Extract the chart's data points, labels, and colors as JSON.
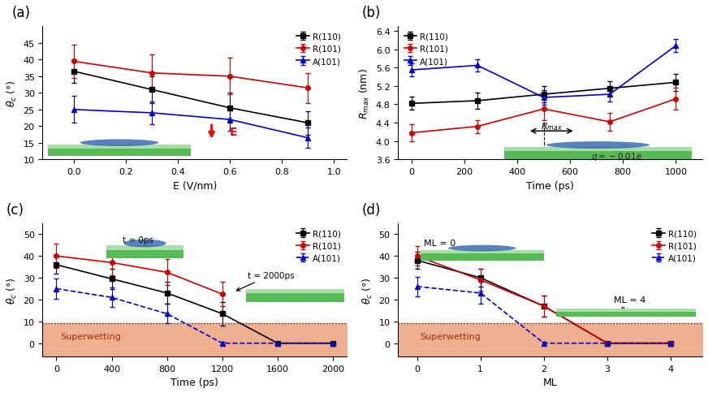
{
  "panel_a": {
    "xlabel": "E (V/nm)",
    "ylabel": "θ_c (°)",
    "xlim": [
      -0.12,
      1.05
    ],
    "ylim": [
      10,
      50
    ],
    "yticks": [
      10,
      15,
      20,
      25,
      30,
      35,
      40,
      45
    ],
    "xticks": [
      0.0,
      0.2,
      0.4,
      0.6,
      0.8,
      1.0
    ],
    "series": {
      "R110": {
        "x": [
          0.0,
          0.3,
          0.6,
          0.9
        ],
        "y": [
          36.5,
          31.0,
          25.5,
          21.0
        ],
        "yerr": [
          3.5,
          4.0,
          4.5,
          3.5
        ],
        "color": "#000000",
        "marker": "s",
        "label": "R(110)"
      },
      "R101": {
        "x": [
          0.0,
          0.3,
          0.6,
          0.9
        ],
        "y": [
          39.5,
          36.0,
          35.0,
          31.5
        ],
        "yerr": [
          5.0,
          5.5,
          5.5,
          4.5
        ],
        "color": "#cc0000",
        "marker": "o",
        "label": "R(101)"
      },
      "A101": {
        "x": [
          0.0,
          0.3,
          0.6,
          0.9
        ],
        "y": [
          25.0,
          24.0,
          22.0,
          16.5
        ],
        "yerr": [
          4.0,
          3.5,
          3.5,
          3.0
        ],
        "color": "#0000cc",
        "marker": "^",
        "label": "A(101)"
      }
    }
  },
  "panel_b": {
    "xlabel": "Time (ps)",
    "ylabel": "R_max (nm)",
    "xlim": [
      -50,
      1100
    ],
    "ylim": [
      3.6,
      6.5
    ],
    "yticks": [
      3.6,
      4.0,
      4.4,
      4.8,
      5.2,
      5.6,
      6.0,
      6.4
    ],
    "xticks": [
      0,
      200,
      400,
      600,
      800,
      1000
    ],
    "series": {
      "R110": {
        "x": [
          0,
          250,
          500,
          750,
          1000
        ],
        "y": [
          4.82,
          4.88,
          5.02,
          5.15,
          5.28
        ],
        "yerr": [
          0.14,
          0.18,
          0.18,
          0.16,
          0.18
        ],
        "color": "#000000",
        "marker": "s",
        "label": "R(110)"
      },
      "R101": {
        "x": [
          0,
          250,
          500,
          750,
          1000
        ],
        "y": [
          4.18,
          4.32,
          4.7,
          4.42,
          4.92
        ],
        "yerr": [
          0.18,
          0.14,
          0.24,
          0.2,
          0.24
        ],
        "color": "#cc0000",
        "marker": "o",
        "label": "R(101)"
      },
      "A101": {
        "x": [
          0,
          250,
          500,
          750,
          1000
        ],
        "y": [
          5.55,
          5.65,
          4.95,
          5.02,
          6.08
        ],
        "yerr": [
          0.14,
          0.14,
          0.16,
          0.16,
          0.14
        ],
        "color": "#0000cc",
        "marker": "^",
        "label": "A(101)"
      }
    }
  },
  "panel_c": {
    "xlabel": "Time (ps)",
    "ylabel": "θ_c (°)",
    "xlim": [
      -100,
      2100
    ],
    "ylim": [
      -6,
      55
    ],
    "yticks": [
      0,
      10,
      20,
      30,
      40,
      50
    ],
    "xticks": [
      0,
      400,
      800,
      1200,
      1600,
      2000
    ],
    "superwetting_threshold": 9,
    "series": {
      "R110": {
        "x": [
          0,
          400,
          800,
          1200,
          1600,
          2000
        ],
        "y": [
          36.0,
          29.5,
          23.0,
          13.5,
          0.0,
          0.0
        ],
        "yerr": [
          4.0,
          4.5,
          5.0,
          5.5,
          0.5,
          0.5
        ],
        "color": "#000000",
        "marker": "s",
        "label": "R(110)"
      },
      "R101": {
        "x": [
          0,
          400,
          800,
          1200
        ],
        "y": [
          40.0,
          37.0,
          32.5,
          22.5
        ],
        "yerr": [
          5.5,
          6.0,
          6.0,
          5.5
        ],
        "color": "#cc0000",
        "marker": "o",
        "label": "R(101)"
      },
      "A101": {
        "x": [
          0,
          400,
          800,
          1200,
          1600,
          2000
        ],
        "y": [
          25.0,
          21.0,
          13.5,
          0.0,
          0.0,
          0.0
        ],
        "yerr": [
          4.5,
          4.5,
          4.5,
          0.5,
          0.5,
          0.5
        ],
        "color": "#0000cc",
        "marker": "^",
        "linestyle": "--",
        "label": "A(101)"
      }
    }
  },
  "panel_d": {
    "xlabel": "ML",
    "ylabel": "θ_c (°)",
    "xlim": [
      -0.3,
      4.5
    ],
    "ylim": [
      -6,
      55
    ],
    "yticks": [
      0,
      10,
      20,
      30,
      40,
      50
    ],
    "xticks": [
      0,
      1,
      2,
      3,
      4
    ],
    "superwetting_threshold": 9,
    "series": {
      "R110": {
        "x": [
          0,
          1,
          2,
          3,
          4
        ],
        "y": [
          38.0,
          30.0,
          17.0,
          0.0,
          0.0
        ],
        "yerr": [
          4.0,
          4.0,
          5.0,
          0.5,
          0.5
        ],
        "color": "#000000",
        "marker": "s",
        "label": "R(110)"
      },
      "R101": {
        "x": [
          0,
          1,
          2,
          3,
          4
        ],
        "y": [
          40.0,
          29.0,
          17.0,
          0.0,
          0.0
        ],
        "yerr": [
          4.5,
          5.0,
          5.0,
          0.5,
          0.5
        ],
        "color": "#cc0000",
        "marker": "o",
        "label": "R(101)"
      },
      "A101": {
        "x": [
          0,
          1,
          2,
          3,
          4
        ],
        "y": [
          26.0,
          23.0,
          0.0,
          0.0,
          0.0
        ],
        "yerr": [
          4.5,
          5.0,
          0.5,
          0.5,
          0.5
        ],
        "color": "#0000cc",
        "marker": "^",
        "linestyle": "--",
        "label": "A(101)"
      }
    }
  },
  "bg_color": "#ffffff",
  "superwetting_color": "#f0b090"
}
